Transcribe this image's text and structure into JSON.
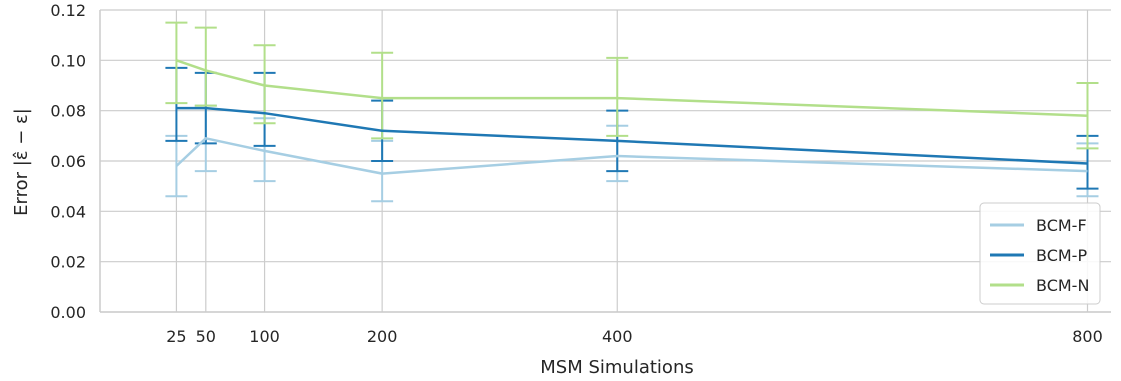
{
  "chart_data": {
    "type": "line",
    "x": [
      25,
      50,
      100,
      200,
      400,
      800
    ],
    "x_tick_labels": [
      "25",
      "50",
      "100",
      "200",
      "400",
      "800"
    ],
    "y_tick_labels": [
      "0.00",
      "0.02",
      "0.04",
      "0.06",
      "0.08",
      "0.10",
      "0.12"
    ],
    "xlabel": "MSM Simulations",
    "ylabel": "Error |ε̂ − ε|",
    "xlim": [
      -40,
      820
    ],
    "ylim": [
      0.0,
      0.12
    ],
    "y_ticks": [
      0.0,
      0.02,
      0.04,
      0.06,
      0.08,
      0.1,
      0.12
    ],
    "grid": true,
    "legend_position": "bottom-right",
    "series": [
      {
        "name": "BCM-F",
        "color": "#a6cee3",
        "values": [
          0.058,
          0.069,
          0.064,
          0.055,
          0.062,
          0.056
        ],
        "err_low": [
          0.046,
          0.056,
          0.052,
          0.044,
          0.052,
          0.046
        ],
        "err_high": [
          0.07,
          0.082,
          0.077,
          0.068,
          0.074,
          0.067
        ]
      },
      {
        "name": "BCM-P",
        "color": "#1f78b4",
        "values": [
          0.081,
          0.081,
          0.079,
          0.072,
          0.068,
          0.059
        ],
        "err_low": [
          0.068,
          0.067,
          0.066,
          0.06,
          0.056,
          0.049
        ],
        "err_high": [
          0.097,
          0.095,
          0.095,
          0.084,
          0.08,
          0.07
        ]
      },
      {
        "name": "BCM-N",
        "color": "#b2df8a",
        "values": [
          0.1,
          0.096,
          0.09,
          0.085,
          0.085,
          0.078
        ],
        "err_low": [
          0.083,
          0.082,
          0.075,
          0.069,
          0.07,
          0.065
        ],
        "err_high": [
          0.115,
          0.113,
          0.106,
          0.103,
          0.101,
          0.091
        ]
      }
    ]
  }
}
